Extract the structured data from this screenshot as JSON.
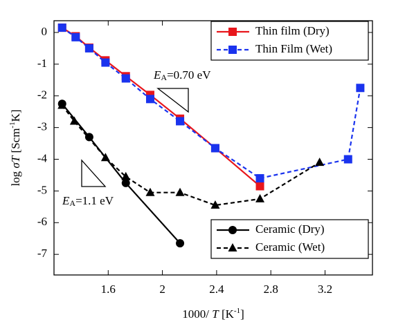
{
  "chart_data": {
    "type": "line",
    "x_label": [
      "1000/ ",
      "T",
      " [K",
      "-1",
      "]"
    ],
    "y_label": [
      "log ",
      "σT",
      " [Scm",
      "-1",
      "K]"
    ],
    "xlim": [
      1.2,
      3.55
    ],
    "xticks": [
      1.6,
      2.0,
      2.4,
      2.8,
      3.2
    ],
    "ylim": [
      -7.65,
      0.37
    ],
    "yticks": [
      0,
      -1,
      -2,
      -3,
      -4,
      -5,
      -6,
      -7
    ],
    "series": [
      {
        "name": "Thin film (Dry)",
        "color": "#e8161c",
        "marker": "square",
        "dash": false,
        "x": [
          1.26,
          1.36,
          1.46,
          1.58,
          1.73,
          1.91,
          2.13,
          2.39,
          2.72
        ],
        "values": [
          0.15,
          -0.12,
          -0.48,
          -0.88,
          -1.38,
          -1.97,
          -2.72,
          -3.65,
          -4.85
        ]
      },
      {
        "name": "Thin Film (Wet)",
        "color": "#1a33ee",
        "marker": "square",
        "dash": true,
        "x": [
          1.26,
          1.36,
          1.46,
          1.58,
          1.73,
          1.91,
          2.13,
          2.39,
          2.72,
          3.37,
          3.46
        ],
        "values": [
          0.15,
          -0.15,
          -0.5,
          -0.95,
          -1.45,
          -2.1,
          -2.8,
          -3.65,
          -4.6,
          -4.0,
          -1.75
        ]
      },
      {
        "name": "Ceramic (Dry)",
        "color": "#000000",
        "marker": "circle",
        "dash": false,
        "x": [
          1.26,
          1.46,
          1.73,
          2.13
        ],
        "values": [
          -2.25,
          -3.3,
          -4.75,
          -6.65
        ]
      },
      {
        "name": "Ceramic (Wet)",
        "color": "#000000",
        "marker": "triangle",
        "dash": true,
        "x": [
          1.26,
          1.35,
          1.58,
          1.73,
          1.91,
          2.13,
          2.39,
          2.72,
          3.16
        ],
        "values": [
          -2.3,
          -2.8,
          -3.95,
          -4.55,
          -5.05,
          -5.05,
          -5.45,
          -5.25,
          -4.1
        ]
      }
    ],
    "annotations": [
      [
        "E",
        "A",
        "=0.70 eV"
      ],
      [
        "E",
        "A",
        "=1.1 eV"
      ]
    ]
  }
}
